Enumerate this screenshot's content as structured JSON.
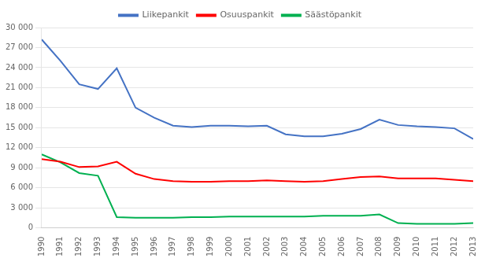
{
  "chart_data": {
    "type": "line",
    "x": [
      1990,
      1991,
      1992,
      1993,
      1994,
      1995,
      1996,
      1997,
      1998,
      1999,
      2000,
      2001,
      2002,
      2003,
      2004,
      2005,
      2006,
      2007,
      2008,
      2009,
      2010,
      2011,
      2012,
      2013
    ],
    "series": [
      {
        "name": "Liikepankit",
        "color": "#4472C4",
        "values": [
          28200,
          25000,
          21500,
          20800,
          23900,
          18000,
          16500,
          15300,
          15100,
          15300,
          15300,
          15200,
          15300,
          14000,
          13700,
          13700,
          14100,
          14800,
          16200,
          15400,
          15200,
          15100,
          14900,
          13300
        ]
      },
      {
        "name": "Osuuspankit",
        "color": "#FF0000",
        "values": [
          10300,
          9900,
          9100,
          9200,
          9900,
          8100,
          7300,
          7000,
          6900,
          6900,
          7000,
          7000,
          7100,
          7000,
          6900,
          7000,
          7300,
          7600,
          7700,
          7400,
          7400,
          7400,
          7200,
          7000
        ]
      },
      {
        "name": "Säästöpankit",
        "color": "#00B050",
        "values": [
          11000,
          9800,
          8200,
          7800,
          1600,
          1500,
          1500,
          1500,
          1600,
          1600,
          1700,
          1700,
          1700,
          1700,
          1700,
          1800,
          1800,
          1800,
          2000,
          700,
          600,
          600,
          600,
          700
        ]
      }
    ],
    "xlim": [
      1990,
      2013
    ],
    "xticks": [
      1990,
      1991,
      1992,
      1993,
      1994,
      1995,
      1996,
      1997,
      1998,
      1999,
      2000,
      2001,
      2002,
      2003,
      2004,
      2005,
      2006,
      2007,
      2008,
      2009,
      2010,
      2011,
      2012,
      2013
    ],
    "ylim": [
      0,
      30000
    ],
    "yticks": [
      0,
      {
        "value": 3000,
        "label": "3 000"
      },
      {
        "value": 6000,
        "label": "6 000"
      },
      {
        "value": 9000,
        "label": "9 000"
      },
      {
        "value": 12000,
        "label": "12 000"
      },
      {
        "value": 15000,
        "label": "15 000"
      },
      {
        "value": 18000,
        "label": "18 000"
      },
      {
        "value": 21000,
        "label": "21 000"
      },
      {
        "value": 24000,
        "label": "24 000"
      },
      {
        "value": 27000,
        "label": "27 000"
      },
      {
        "value": 30000,
        "label": "30 000"
      }
    ],
    "grid": "y",
    "legend": "top"
  }
}
